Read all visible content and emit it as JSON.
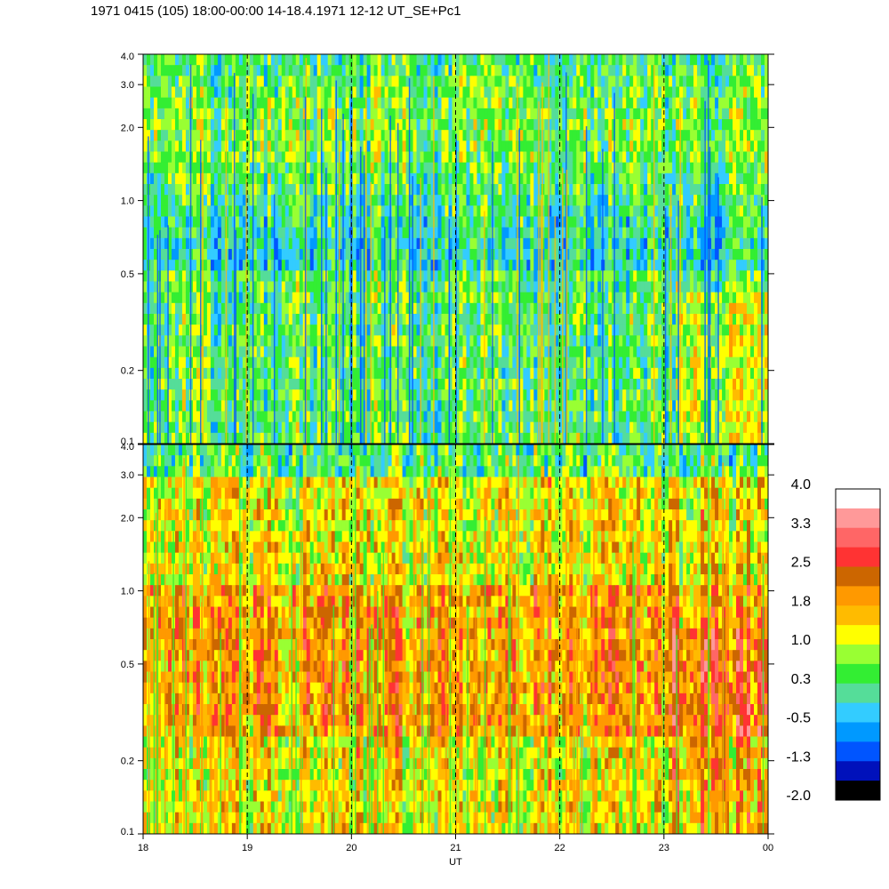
{
  "chart_data": {
    "type": "heatmap",
    "title": "1971 0415 (105) 18:00-00:00 14-18.4.1971  12-12 UT_SE+Pc1",
    "xlabel": "UT",
    "x_ticks": [
      "18",
      "19",
      "20",
      "21",
      "22",
      "23",
      "00"
    ],
    "x_range_hours": [
      18,
      24
    ],
    "panels": [
      {
        "name": "upper",
        "y_scale": "log",
        "ylim": [
          0.1,
          4.0
        ],
        "y_ticks": [
          {
            "value": 4.0,
            "label": "4.0"
          },
          {
            "value": 3.0,
            "label": "3.0"
          },
          {
            "value": 2.0,
            "label": "2.0"
          },
          {
            "value": 1.0,
            "label": "1.0"
          },
          {
            "value": 0.5,
            "label": "0.5"
          },
          {
            "value": 0.2,
            "label": "0.2"
          },
          {
            "value": 0.1,
            "label": "0.1"
          }
        ],
        "dominant_level_range": [
          -0.5,
          1.0
        ]
      },
      {
        "name": "lower",
        "y_scale": "log",
        "ylim": [
          0.1,
          4.0
        ],
        "y_ticks": [
          {
            "value": 4.0,
            "label": "4.0"
          },
          {
            "value": 3.0,
            "label": "3.0"
          },
          {
            "value": 2.0,
            "label": "2.0"
          },
          {
            "value": 1.0,
            "label": "1.0"
          },
          {
            "value": 0.5,
            "label": "0.5"
          },
          {
            "value": 0.2,
            "label": "0.2"
          },
          {
            "value": 0.1,
            "label": "0.1"
          }
        ],
        "dominant_level_range": [
          0.3,
          2.2
        ]
      }
    ],
    "vertical_dashed_lines_hours": [
      19,
      20,
      21,
      22,
      23
    ],
    "colorbar": {
      "labels": [
        "4.0",
        "3.3",
        "2.5",
        "1.8",
        "1.0",
        "0.3",
        "-0.5",
        "-1.3",
        "-2.0"
      ],
      "colors_top_to_bottom": [
        "#ffffff",
        "#ff9999",
        "#ff6666",
        "#ff3333",
        "#cc6600",
        "#ff9900",
        "#ffbb00",
        "#ffff00",
        "#99ff33",
        "#33ee33",
        "#55dd99",
        "#33ccff",
        "#0099ff",
        "#0055ff",
        "#0011bb",
        "#000000"
      ]
    }
  }
}
